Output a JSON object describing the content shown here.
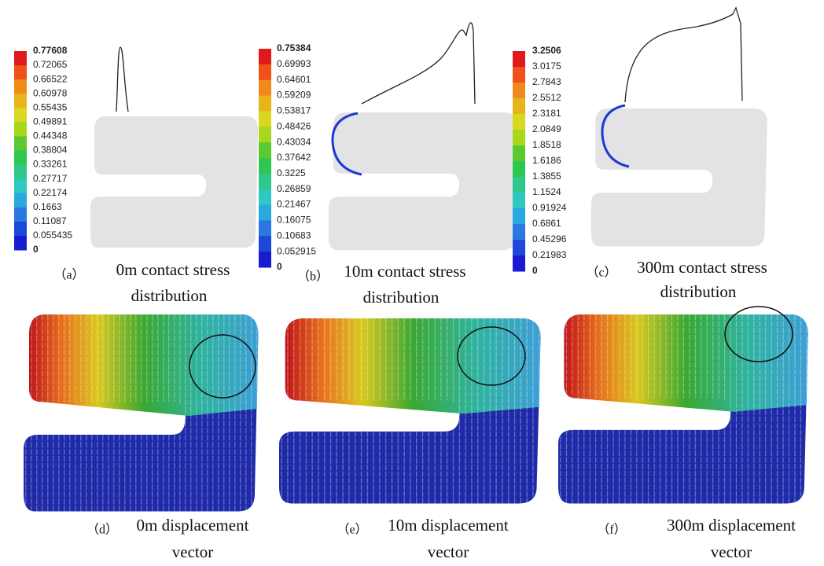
{
  "stress_panels": [
    {
      "label": "（a）",
      "caption": [
        "0m contact stress",
        "distribution"
      ],
      "legend": [
        "0.77608",
        "0.72065",
        "0.66522",
        "0.60978",
        "0.55435",
        "0.49891",
        "0.44348",
        "0.38804",
        "0.33261",
        "0.27717",
        "0.22174",
        "0.1663",
        "0.11087",
        "0.055435",
        "0"
      ]
    },
    {
      "label": "（b）",
      "caption": [
        "10m contact stress",
        "distribution"
      ],
      "legend": [
        "0.75384",
        "0.69993",
        "0.64601",
        "0.59209",
        "0.53817",
        "0.48426",
        "0.43034",
        "0.37642",
        "0.3225",
        "0.26859",
        "0.21467",
        "0.16075",
        "0.10683",
        "0.052915",
        "0"
      ]
    },
    {
      "label": "（c）",
      "caption": [
        "300m contact stress",
        "distribution"
      ],
      "legend": [
        "3.2506",
        "3.0175",
        "2.7843",
        "2.5512",
        "2.3181",
        "2.0849",
        "1.8518",
        "1.6186",
        "1.3855",
        "1.1524",
        "0.91924",
        "0.6861",
        "0.45296",
        "0.21983",
        "0"
      ]
    }
  ],
  "displacement_panels": [
    {
      "label": "（d）",
      "caption": [
        "0m displacement",
        "vector"
      ]
    },
    {
      "label": "（e）",
      "caption": [
        "10m displacement",
        "vector"
      ]
    },
    {
      "label": "（f）",
      "caption": [
        "300m displacement",
        "vector"
      ]
    }
  ]
}
